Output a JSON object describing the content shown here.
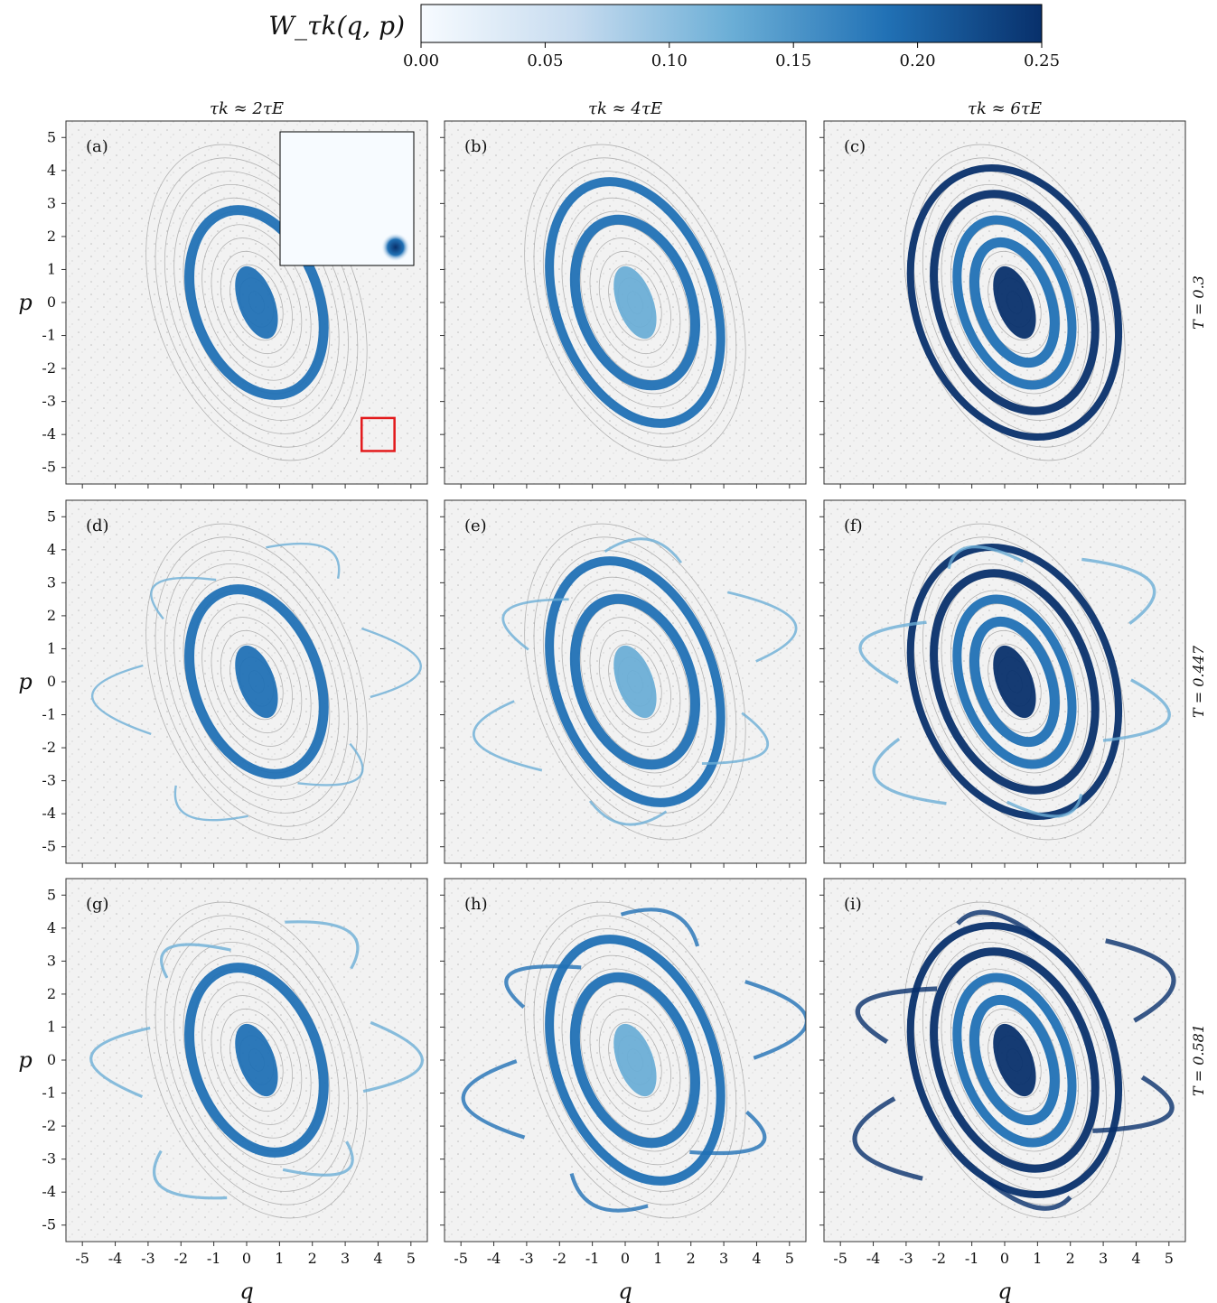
{
  "colorbar": {
    "label": "W_τk(q, p)",
    "ticks": [
      "0.00",
      "0.05",
      "0.10",
      "0.15",
      "0.20",
      "0.25"
    ],
    "range": [
      0.0,
      0.25
    ],
    "colors": [
      "#f7fbff",
      "#c6dbef",
      "#6baed6",
      "#2171b5",
      "#08306b"
    ]
  },
  "columns": [
    "τk ≈ 2τE",
    "τk ≈ 4τE",
    "τk ≈ 6τE"
  ],
  "rows": [
    "T = 0.3",
    "T = 0.447",
    "T = 0.581"
  ],
  "axes": {
    "xlabel": "q",
    "ylabel": "p",
    "xlim": [
      -5.5,
      5.5
    ],
    "ylim": [
      -5.5,
      5.5
    ],
    "ticks": [
      -5,
      -4,
      -3,
      -2,
      -1,
      0,
      1,
      2,
      3,
      4,
      5
    ]
  },
  "chart_data": {
    "type": "heatmap",
    "title": "",
    "xlabel": "q",
    "ylabel": "p",
    "xlim": [
      -5.5,
      5.5
    ],
    "ylim": [
      -5.5,
      5.5
    ],
    "panels": [
      {
        "label": "(a)",
        "column": "τk ≈ 2τE",
        "row": "T = 0.3",
        "ring_rx": [
          1.9
        ],
        "ring_ry": [
          2.9
        ],
        "tilt_deg": -20,
        "core": 0.2,
        "chaos": 0.0
      },
      {
        "label": "(b)",
        "column": "τk ≈ 4τE",
        "row": "T = 0.3",
        "ring_rx": [
          1.7,
          2.4
        ],
        "ring_ry": [
          2.6,
          3.8
        ],
        "tilt_deg": -20,
        "core": 0.12,
        "chaos": 0.0
      },
      {
        "label": "(c)",
        "column": "τk ≈ 6τE",
        "row": "T = 0.3",
        "ring_rx": [
          1.1,
          1.6,
          2.3,
          3.0
        ],
        "ring_ry": [
          1.9,
          2.6,
          3.4,
          4.2
        ],
        "tilt_deg": -20,
        "core": 0.25,
        "chaos": 0.0
      },
      {
        "label": "(d)",
        "column": "τk ≈ 2τE",
        "row": "T = 0.447",
        "ring_rx": [
          1.9
        ],
        "ring_ry": [
          2.9
        ],
        "tilt_deg": -20,
        "core": 0.2,
        "chaos": 0.1
      },
      {
        "label": "(e)",
        "column": "τk ≈ 4τE",
        "row": "T = 0.447",
        "ring_rx": [
          1.7,
          2.4
        ],
        "ring_ry": [
          2.6,
          3.8
        ],
        "tilt_deg": -20,
        "core": 0.12,
        "chaos": 0.2
      },
      {
        "label": "(f)",
        "column": "τk ≈ 6τE",
        "row": "T = 0.447",
        "ring_rx": [
          1.1,
          1.6,
          2.3,
          3.0
        ],
        "ring_ry": [
          1.9,
          2.6,
          3.4,
          4.2
        ],
        "tilt_deg": -20,
        "core": 0.25,
        "chaos": 0.35
      },
      {
        "label": "(g)",
        "column": "τk ≈ 2τE",
        "row": "T = 0.581",
        "ring_rx": [
          1.9
        ],
        "ring_ry": [
          2.9
        ],
        "tilt_deg": -20,
        "core": 0.2,
        "chaos": 0.3
      },
      {
        "label": "(h)",
        "column": "τk ≈ 4τE",
        "row": "T = 0.581",
        "ring_rx": [
          1.7,
          2.4
        ],
        "ring_ry": [
          2.6,
          3.8
        ],
        "tilt_deg": -20,
        "core": 0.12,
        "chaos": 0.55
      },
      {
        "label": "(i)",
        "column": "τk ≈ 6τE",
        "row": "T = 0.581",
        "ring_rx": [
          1.1,
          1.6,
          2.3,
          3.0
        ],
        "ring_ry": [
          1.9,
          2.6,
          3.4,
          4.2
        ],
        "tilt_deg": -20,
        "core": 0.25,
        "chaos": 0.8
      }
    ],
    "inset": {
      "panel": "(a)",
      "blob_q": 4.0,
      "blob_p": -4.0,
      "roi_q": [
        3.5,
        4.5
      ],
      "roi_p": [
        -4.5,
        -3.5
      ],
      "roi_color": "#e31a1c"
    }
  }
}
